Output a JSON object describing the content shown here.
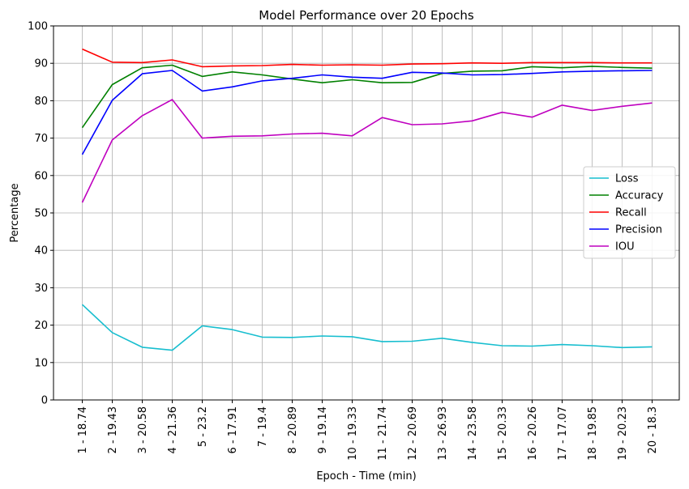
{
  "chart_data": {
    "type": "line",
    "title": "Model Performance over 20 Epochs",
    "xlabel": "Epoch - Time (min)",
    "ylabel": "Percentage",
    "ylim": [
      0,
      100
    ],
    "yticks": [
      0,
      10,
      20,
      30,
      40,
      50,
      60,
      70,
      80,
      90,
      100
    ],
    "grid": true,
    "legend_position": "center-right",
    "categories": [
      "1 - 18.74",
      "2 - 19.43",
      "3 - 20.58",
      "4 - 21.36",
      "5 - 23.2",
      "6 - 17.91",
      "7 - 19.4",
      "8 - 20.89",
      "9 - 19.14",
      "10 - 19.33",
      "11 - 21.74",
      "12 - 20.69",
      "13 - 26.93",
      "14 - 23.58",
      "15 - 20.33",
      "16 - 20.26",
      "17 - 17.07",
      "18 - 19.85",
      "19 - 20.23",
      "20 - 18.3"
    ],
    "series": [
      {
        "name": "Loss",
        "color": "#17becf",
        "values": [
          25.5,
          18.0,
          14.1,
          13.3,
          19.8,
          18.8,
          16.8,
          16.7,
          17.1,
          16.9,
          15.6,
          15.7,
          16.5,
          15.4,
          14.5,
          14.4,
          14.8,
          14.5,
          14.0,
          14.2
        ]
      },
      {
        "name": "Accuracy",
        "color": "#008000",
        "values": [
          72.8,
          84.3,
          88.8,
          89.5,
          86.5,
          87.7,
          86.9,
          85.8,
          84.8,
          85.6,
          84.8,
          84.9,
          87.3,
          87.9,
          88.0,
          89.1,
          88.8,
          89.2,
          88.9,
          88.7
        ]
      },
      {
        "name": "Recall",
        "color": "#ff0000",
        "values": [
          93.8,
          90.3,
          90.2,
          90.9,
          89.1,
          89.3,
          89.4,
          89.7,
          89.5,
          89.6,
          89.5,
          89.8,
          89.9,
          90.1,
          90.0,
          90.2,
          90.2,
          90.2,
          90.1,
          90.1
        ]
      },
      {
        "name": "Precision",
        "color": "#0000ff",
        "values": [
          65.6,
          80.1,
          87.2,
          88.1,
          82.6,
          83.7,
          85.3,
          86.0,
          86.9,
          86.3,
          86.0,
          87.6,
          87.4,
          86.9,
          87.0,
          87.3,
          87.7,
          87.9,
          88.0,
          88.1
        ]
      },
      {
        "name": "IOU",
        "color": "#bf00bf",
        "values": [
          52.8,
          69.5,
          76.0,
          80.3,
          70.0,
          70.5,
          70.6,
          71.1,
          71.3,
          70.6,
          75.5,
          73.6,
          73.8,
          74.6,
          76.9,
          75.6,
          78.8,
          77.4,
          78.5,
          79.4
        ]
      }
    ]
  }
}
